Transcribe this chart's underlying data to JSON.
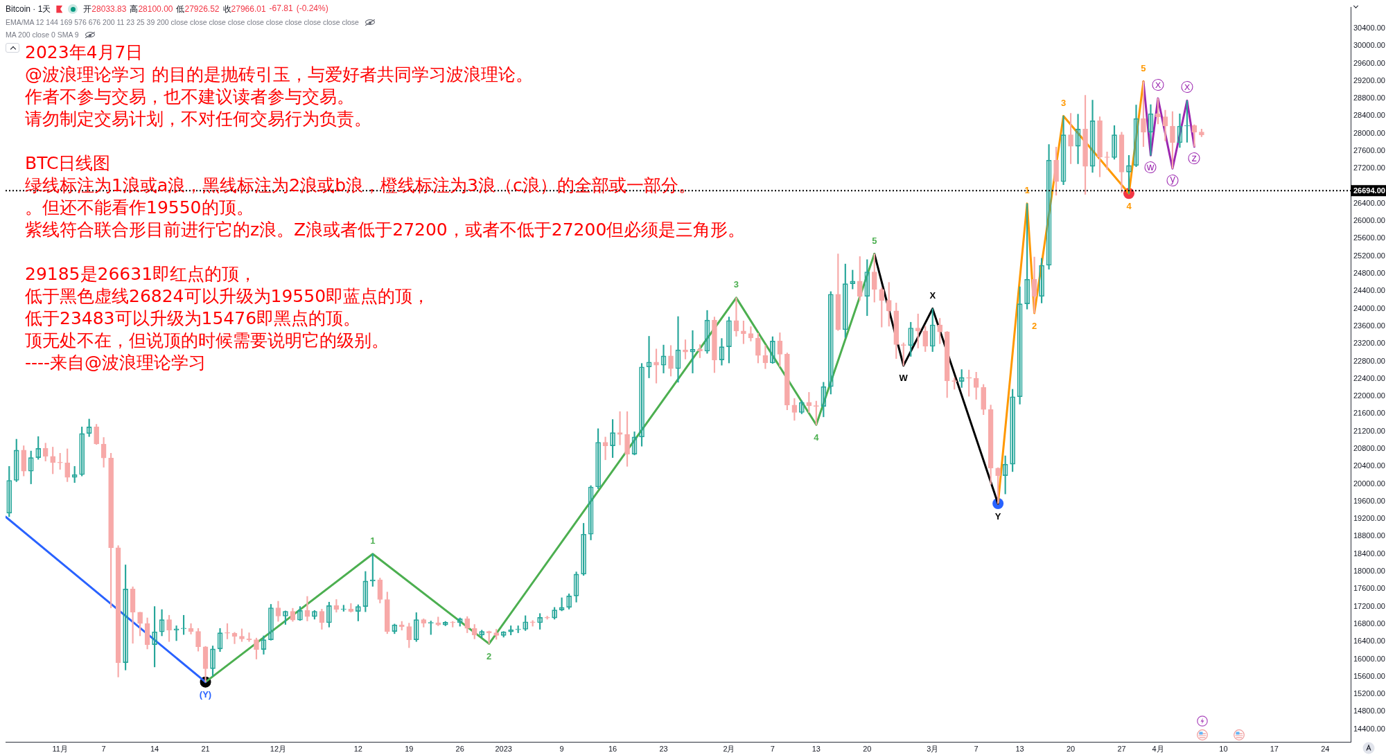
{
  "chart_data": {
    "type": "candlestick",
    "title": "Bitcoin · 1天",
    "subtitle": "开28033.83 高28100.00 低27926.52 收27966.01 -67.81 (-0.24%)",
    "x": [
      "2022-10-25",
      "2022-10-26",
      "2022-10-27",
      "2022-10-28",
      "2022-10-29",
      "2022-10-30",
      "2022-10-31",
      "2022-11-01",
      "2022-11-02",
      "2022-11-03",
      "2022-11-04",
      "2022-11-05",
      "2022-11-06",
      "2022-11-07",
      "2022-11-08",
      "2022-11-09",
      "2022-11-10",
      "2022-11-11",
      "2022-11-12",
      "2022-11-13",
      "2022-11-14",
      "2022-11-15",
      "2022-11-16",
      "2022-11-17",
      "2022-11-18",
      "2022-11-19",
      "2022-11-20",
      "2022-11-21",
      "2022-11-22",
      "2022-11-23",
      "2022-11-24",
      "2022-11-25",
      "2022-11-26",
      "2022-11-27",
      "2022-11-28",
      "2022-11-29",
      "2022-11-30",
      "2022-12-01",
      "2022-12-02",
      "2022-12-03",
      "2022-12-04",
      "2022-12-05",
      "2022-12-06",
      "2022-12-07",
      "2022-12-08",
      "2022-12-09",
      "2022-12-10",
      "2022-12-11",
      "2022-12-12",
      "2022-12-13",
      "2022-12-14",
      "2022-12-15",
      "2022-12-16",
      "2022-12-17",
      "2022-12-18",
      "2022-12-19",
      "2022-12-20",
      "2022-12-21",
      "2022-12-22",
      "2022-12-23",
      "2022-12-24",
      "2022-12-25",
      "2022-12-26",
      "2022-12-27",
      "2022-12-28",
      "2022-12-29",
      "2022-12-30",
      "2022-12-31",
      "2023-01-01",
      "2023-01-02",
      "2023-01-03",
      "2023-01-04",
      "2023-01-05",
      "2023-01-06",
      "2023-01-07",
      "2023-01-08",
      "2023-01-09",
      "2023-01-10",
      "2023-01-11",
      "2023-01-12",
      "2023-01-13",
      "2023-01-14",
      "2023-01-15",
      "2023-01-16",
      "2023-01-17",
      "2023-01-18",
      "2023-01-19",
      "2023-01-20",
      "2023-01-21",
      "2023-01-22",
      "2023-01-23",
      "2023-01-24",
      "2023-01-25",
      "2023-01-26",
      "2023-01-27",
      "2023-01-28",
      "2023-01-29",
      "2023-01-30",
      "2023-01-31",
      "2023-02-01",
      "2023-02-02",
      "2023-02-03",
      "2023-02-04",
      "2023-02-05",
      "2023-02-06",
      "2023-02-07",
      "2023-02-08",
      "2023-02-09",
      "2023-02-10",
      "2023-02-11",
      "2023-02-12",
      "2023-02-13",
      "2023-02-14",
      "2023-02-15",
      "2023-02-16",
      "2023-02-17",
      "2023-02-18",
      "2023-02-19",
      "2023-02-20",
      "2023-02-21",
      "2023-02-22",
      "2023-02-23",
      "2023-02-24",
      "2023-02-25",
      "2023-02-26",
      "2023-02-27",
      "2023-02-28",
      "2023-03-01",
      "2023-03-02",
      "2023-03-03",
      "2023-03-04",
      "2023-03-05",
      "2023-03-06",
      "2023-03-07",
      "2023-03-08",
      "2023-03-09",
      "2023-03-10",
      "2023-03-11",
      "2023-03-12",
      "2023-03-13",
      "2023-03-14",
      "2023-03-15",
      "2023-03-16",
      "2023-03-17",
      "2023-03-18",
      "2023-03-19",
      "2023-03-20",
      "2023-03-21",
      "2023-03-22",
      "2023-03-23",
      "2023-03-24",
      "2023-03-25",
      "2023-03-26",
      "2023-03-27",
      "2023-03-28",
      "2023-03-29",
      "2023-03-30",
      "2023-03-31",
      "2023-04-01",
      "2023-04-02",
      "2023-04-03",
      "2023-04-04",
      "2023-04-05",
      "2023-04-06",
      "2023-04-07"
    ],
    "ohlc": [
      [
        19330,
        20400,
        19250,
        20080
      ],
      [
        20080,
        21020,
        20050,
        20770
      ],
      [
        20770,
        20870,
        20180,
        20290
      ],
      [
        20290,
        20750,
        20000,
        20600
      ],
      [
        20600,
        21080,
        20560,
        20810
      ],
      [
        20810,
        20930,
        20520,
        20630
      ],
      [
        20630,
        20840,
        20230,
        20490
      ],
      [
        20490,
        20700,
        20330,
        20480
      ],
      [
        20480,
        20800,
        20050,
        20150
      ],
      [
        20150,
        20400,
        20030,
        20210
      ],
      [
        20210,
        21300,
        20180,
        21150
      ],
      [
        21150,
        21480,
        21080,
        21300
      ],
      [
        21300,
        21360,
        20900,
        20910
      ],
      [
        20910,
        21060,
        20380,
        20590
      ],
      [
        20590,
        20700,
        17170,
        18540
      ],
      [
        18540,
        18590,
        15590,
        15920
      ],
      [
        15920,
        18150,
        15750,
        17600
      ],
      [
        17600,
        17650,
        16360,
        17070
      ],
      [
        17070,
        17070,
        16530,
        16810
      ],
      [
        16810,
        16940,
        16230,
        16330
      ],
      [
        16330,
        17200,
        15820,
        16620
      ],
      [
        16620,
        17130,
        16530,
        16900
      ],
      [
        16900,
        17000,
        16400,
        16660
      ],
      [
        16660,
        16760,
        16420,
        16690
      ],
      [
        16690,
        17000,
        16560,
        16700
      ],
      [
        16700,
        16810,
        16570,
        16630
      ],
      [
        16630,
        16700,
        16180,
        16280
      ],
      [
        16280,
        16290,
        15476,
        15780
      ],
      [
        15780,
        16300,
        15610,
        16230
      ],
      [
        16230,
        16700,
        16170,
        16600
      ],
      [
        16600,
        16810,
        16460,
        16590
      ],
      [
        16590,
        16610,
        16350,
        16520
      ],
      [
        16520,
        16690,
        16400,
        16460
      ],
      [
        16460,
        16600,
        16400,
        16440
      ],
      [
        16440,
        16480,
        16000,
        16220
      ],
      [
        16220,
        16530,
        16110,
        16440
      ],
      [
        16440,
        17250,
        16430,
        17170
      ],
      [
        17170,
        17320,
        16860,
        16980
      ],
      [
        16980,
        17100,
        16790,
        17090
      ],
      [
        17090,
        17160,
        16860,
        16890
      ],
      [
        16890,
        17200,
        16880,
        17110
      ],
      [
        17110,
        17430,
        16870,
        16970
      ],
      [
        16970,
        17110,
        16910,
        17090
      ],
      [
        17090,
        17140,
        16680,
        16830
      ],
      [
        16830,
        17300,
        16730,
        17220
      ],
      [
        17220,
        17360,
        17070,
        17130
      ],
      [
        17130,
        17230,
        17090,
        17140
      ],
      [
        17140,
        17270,
        17070,
        17090
      ],
      [
        17090,
        17240,
        16870,
        17200
      ],
      [
        17200,
        18000,
        17080,
        17780
      ],
      [
        17780,
        18400,
        17660,
        17810
      ],
      [
        17810,
        17850,
        17280,
        17360
      ],
      [
        17360,
        17530,
        16580,
        16630
      ],
      [
        16630,
        16800,
        16580,
        16780
      ],
      [
        16780,
        16860,
        16660,
        16740
      ],
      [
        16740,
        16820,
        16260,
        16440
      ],
      [
        16440,
        17060,
        16400,
        16900
      ],
      [
        16900,
        16920,
        16730,
        16820
      ],
      [
        16820,
        16870,
        16560,
        16830
      ],
      [
        16830,
        16960,
        16760,
        16780
      ],
      [
        16780,
        16860,
        16760,
        16840
      ],
      [
        16840,
        16860,
        16730,
        16830
      ],
      [
        16830,
        16940,
        16750,
        16920
      ],
      [
        16920,
        16970,
        16600,
        16700
      ],
      [
        16700,
        16790,
        16460,
        16550
      ],
      [
        16550,
        16660,
        16490,
        16630
      ],
      [
        16630,
        16640,
        16350,
        16600
      ],
      [
        16600,
        16680,
        16450,
        16540
      ],
      [
        16540,
        16630,
        16500,
        16620
      ],
      [
        16620,
        16760,
        16550,
        16670
      ],
      [
        16670,
        16760,
        16600,
        16680
      ],
      [
        16680,
        16990,
        16650,
        16850
      ],
      [
        16850,
        16880,
        16750,
        16830
      ],
      [
        16830,
        17040,
        16680,
        16950
      ],
      [
        16950,
        16980,
        16910,
        16940
      ],
      [
        16940,
        17180,
        16910,
        17120
      ],
      [
        17120,
        17400,
        17100,
        17180
      ],
      [
        17180,
        17490,
        17140,
        17440
      ],
      [
        17440,
        17990,
        17300,
        17940
      ],
      [
        17940,
        19100,
        17910,
        18850
      ],
      [
        18850,
        19960,
        18720,
        19930
      ],
      [
        19930,
        21260,
        19890,
        20950
      ],
      [
        20950,
        21070,
        20550,
        20870
      ],
      [
        20870,
        21470,
        20600,
        21170
      ],
      [
        21170,
        21650,
        20890,
        21130
      ],
      [
        21130,
        21650,
        20400,
        20680
      ],
      [
        20680,
        21190,
        20660,
        21070
      ],
      [
        21070,
        22750,
        20860,
        22670
      ],
      [
        22670,
        23370,
        22420,
        22780
      ],
      [
        22780,
        23080,
        22300,
        22710
      ],
      [
        22710,
        23170,
        22530,
        22920
      ],
      [
        22920,
        23160,
        22460,
        22630
      ],
      [
        22630,
        23820,
        22320,
        23060
      ],
      [
        23060,
        23290,
        22850,
        23010
      ],
      [
        23010,
        23500,
        22530,
        23070
      ],
      [
        23070,
        23180,
        22880,
        23030
      ],
      [
        23030,
        23960,
        22980,
        23740
      ],
      [
        23740,
        23810,
        22540,
        22830
      ],
      [
        22830,
        23320,
        22710,
        23130
      ],
      [
        23130,
        23810,
        22760,
        23730
      ],
      [
        23730,
        24250,
        23370,
        23490
      ],
      [
        23490,
        23720,
        23200,
        23430
      ],
      [
        23430,
        23590,
        23260,
        23330
      ],
      [
        23330,
        23440,
        22760,
        22930
      ],
      [
        22930,
        23160,
        22630,
        22760
      ],
      [
        22760,
        23360,
        22750,
        23260
      ],
      [
        23260,
        23450,
        22680,
        22960
      ],
      [
        22960,
        22990,
        21690,
        21800
      ],
      [
        21800,
        21950,
        21450,
        21630
      ],
      [
        21630,
        21900,
        21600,
        21860
      ],
      [
        21860,
        22090,
        21630,
        21780
      ],
      [
        21780,
        21890,
        21350,
        21770
      ],
      [
        21770,
        22320,
        21530,
        22220
      ],
      [
        22220,
        24390,
        22050,
        24330
      ],
      [
        24330,
        25250,
        23500,
        23520
      ],
      [
        23520,
        25020,
        23340,
        24570
      ],
      [
        24570,
        24880,
        24450,
        24630
      ],
      [
        24630,
        25190,
        24190,
        24280
      ],
      [
        24280,
        25120,
        23840,
        24840
      ],
      [
        24840,
        25250,
        24150,
        24440
      ],
      [
        24440,
        24480,
        23580,
        24190
      ],
      [
        24190,
        24600,
        23600,
        23950
      ],
      [
        23950,
        24130,
        22860,
        23180
      ],
      [
        23180,
        23220,
        22700,
        23160
      ],
      [
        23160,
        23690,
        22910,
        23560
      ],
      [
        23560,
        23880,
        23100,
        23490
      ],
      [
        23490,
        23600,
        23020,
        23140
      ],
      [
        23140,
        24000,
        23020,
        23630
      ],
      [
        23630,
        23780,
        23200,
        23470
      ],
      [
        23470,
        23480,
        21970,
        22350
      ],
      [
        22350,
        22420,
        22160,
        22340
      ],
      [
        22340,
        22610,
        22200,
        22430
      ],
      [
        22430,
        22600,
        22000,
        22410
      ],
      [
        22410,
        22550,
        21930,
        22200
      ],
      [
        22200,
        22270,
        21580,
        21700
      ],
      [
        21700,
        21800,
        19990,
        20360
      ],
      [
        20360,
        20370,
        19550,
        20190
      ],
      [
        20190,
        20640,
        19770,
        20450
      ],
      [
        20450,
        22160,
        20280,
        21990
      ],
      [
        21990,
        24500,
        21820,
        24110
      ],
      [
        24110,
        26400,
        23990,
        24670
      ],
      [
        24670,
        25180,
        23900,
        24280
      ],
      [
        24280,
        25150,
        24130,
        24990
      ],
      [
        24990,
        27750,
        24900,
        27390
      ],
      [
        27390,
        27690,
        26590,
        26900
      ],
      [
        26900,
        28400,
        26830,
        27970
      ],
      [
        27970,
        28460,
        27310,
        27710
      ],
      [
        27710,
        28440,
        27310,
        28100
      ],
      [
        28100,
        28870,
        26610,
        27250
      ],
      [
        27250,
        28760,
        27110,
        28290
      ],
      [
        28290,
        28380,
        27010,
        27460
      ],
      [
        27460,
        27580,
        27180,
        27450
      ],
      [
        27450,
        28180,
        27410,
        27970
      ],
      [
        27970,
        28030,
        26650,
        27120
      ],
      [
        27120,
        27500,
        26631,
        27270
      ],
      [
        27270,
        28650,
        27240,
        28340
      ],
      [
        28340,
        29185,
        27700,
        28030
      ],
      [
        28030,
        28660,
        27500,
        28450
      ],
      [
        28450,
        28800,
        28220,
        28380
      ],
      [
        28380,
        28530,
        27830,
        28170
      ],
      [
        28170,
        28500,
        27200,
        27790
      ],
      [
        27790,
        28450,
        27680,
        28170
      ],
      [
        28170,
        28750,
        27800,
        28180
      ],
      [
        28180,
        28200,
        27700,
        28030
      ],
      [
        28033.83,
        28100.0,
        27926.52,
        27966.01
      ]
    ],
    "colors": [
      "#26a69a",
      "#26a69a",
      "#f7a9a8",
      "#26a69a",
      "#26a69a",
      "#f7a9a8",
      "#f7a9a8",
      "#f7a9a8",
      "#f7a9a8",
      "#26a69a",
      "#26a69a",
      "#26a69a",
      "#f7a9a8",
      "#f7a9a8",
      "#f7a9a8",
      "#f7a9a8",
      "#26a69a",
      "#f7a9a8",
      "#f7a9a8",
      "#f7a9a8",
      "#26a69a",
      "#26a69a",
      "#f7a9a8",
      "#26a69a",
      "#26a69a",
      "#f7a9a8",
      "#f7a9a8",
      "#f7a9a8",
      "#26a69a",
      "#26a69a",
      "#f7a9a8",
      "#f7a9a8",
      "#f7a9a8",
      "#f7a9a8",
      "#f7a9a8",
      "#26a69a",
      "#26a69a",
      "#f7a9a8",
      "#26a69a",
      "#f7a9a8",
      "#26a69a",
      "#f7a9a8",
      "#26a69a",
      "#f7a9a8",
      "#26a69a",
      "#f7a9a8",
      "#26a69a",
      "#f7a9a8",
      "#26a69a",
      "#26a69a",
      "#26a69a",
      "#f7a9a8",
      "#f7a9a8",
      "#26a69a",
      "#f7a9a8",
      "#f7a9a8",
      "#26a69a",
      "#f7a9a8",
      "#26a69a",
      "#f7a9a8",
      "#26a69a",
      "#f7a9a8",
      "#26a69a",
      "#f7a9a8",
      "#f7a9a8",
      "#26a69a",
      "#f7a9a8",
      "#f7a9a8",
      "#26a69a",
      "#26a69a",
      "#26a69a",
      "#26a69a",
      "#f7a9a8",
      "#26a69a",
      "#f7a9a8",
      "#26a69a",
      "#26a69a",
      "#26a69a",
      "#26a69a",
      "#26a69a",
      "#26a69a",
      "#26a69a",
      "#f7a9a8",
      "#26a69a",
      "#f7a9a8",
      "#f7a9a8",
      "#26a69a",
      "#26a69a",
      "#26a69a",
      "#f7a9a8",
      "#26a69a",
      "#f7a9a8",
      "#26a69a",
      "#f7a9a8",
      "#26a69a",
      "#f7a9a8",
      "#26a69a",
      "#f7a9a8",
      "#26a69a",
      "#26a69a",
      "#f7a9a8",
      "#f7a9a8",
      "#f7a9a8",
      "#f7a9a8",
      "#f7a9a8",
      "#26a69a",
      "#f7a9a8",
      "#f7a9a8",
      "#f7a9a8",
      "#26a69a",
      "#f7a9a8",
      "#f7a9a8",
      "#26a69a",
      "#26a69a",
      "#f7a9a8",
      "#26a69a",
      "#26a69a",
      "#f7a9a8",
      "#26a69a",
      "#f7a9a8",
      "#f7a9a8",
      "#f7a9a8",
      "#f7a9a8",
      "#f7a9a8",
      "#26a69a",
      "#f7a9a8",
      "#f7a9a8",
      "#26a69a",
      "#f7a9a8",
      "#f7a9a8",
      "#f7a9a8",
      "#26a69a",
      "#f7a9a8",
      "#f7a9a8",
      "#f7a9a8",
      "#f7a9a8",
      "#f7a9a8",
      "#26a69a",
      "#26a69a",
      "#26a69a",
      "#26a69a",
      "#f7a9a8",
      "#26a69a",
      "#26a69a",
      "#f7a9a8",
      "#26a69a",
      "#f7a9a8",
      "#26a69a",
      "#f7a9a8",
      "#26a69a",
      "#f7a9a8",
      "#f7a9a8",
      "#26a69a",
      "#f7a9a8",
      "#26a69a",
      "#26a69a",
      "#f7a9a8",
      "#26a69a",
      "#f7a9a8",
      "#f7a9a8",
      "#f7a9a8",
      "#26a69a",
      "#26a69a",
      "#f7a9a8",
      "#f7a9a8"
    ],
    "series": [
      {
        "type": "line",
        "color": "#2962ff",
        "x": [
          "2022-10-24T12:00",
          "2022-11-21"
        ],
        "values": [
          19250,
          15476
        ]
      },
      {
        "type": "line",
        "color": "#4caf50",
        "x": [
          "2022-11-21",
          "2022-12-14",
          "2022-12-30",
          "2023-02-02",
          "2023-02-13",
          "2023-02-21"
        ],
        "values": [
          15476,
          18400,
          16350,
          24250,
          21350,
          25250
        ]
      },
      {
        "type": "line",
        "color": "#000000",
        "x": [
          "2023-02-21",
          "2023-02-25",
          "2023-03-01",
          "2023-03-10"
        ],
        "values": [
          25250,
          22700,
          24000,
          19550
        ]
      },
      {
        "type": "line",
        "color": "#ff9800",
        "x": [
          "2023-03-10",
          "2023-03-14",
          "2023-03-15",
          "2023-03-19",
          "2023-03-28",
          "2023-03-30"
        ],
        "values": [
          19550,
          26400,
          23900,
          28400,
          26631,
          29185
        ]
      },
      {
        "type": "line",
        "color": "#9c27b0",
        "x": [
          "2023-03-30",
          "2023-03-31",
          "2023-04-01",
          "2023-04-03",
          "2023-04-05",
          "2023-04-06"
        ],
        "values": [
          29185,
          27500,
          28800,
          27200,
          28750,
          27700
        ]
      },
      {
        "type": "scatter",
        "marker": "circle",
        "x": [
          "2022-11-21",
          "2023-03-10",
          "2023-03-28"
        ],
        "values": [
          15476,
          19550,
          26631
        ],
        "colors": [
          "#000000",
          "#2962ff",
          "#f23645"
        ]
      }
    ],
    "ref_lines": [
      {
        "axis": "y",
        "value": 26694,
        "label": "26694.00",
        "color": "#000000",
        "line_style": "dotted"
      }
    ],
    "annotations": [
      "EMA/MA 12 144 169 576 676 200 11 23 25 39 200 close close close close close close close close close close",
      "MA 200 close 0 SMA 9",
      "2023年4月7日",
      "@波浪理论学习 的目的是抛砖引玉，与爱好者共同学习波浪理论。",
      "作者不参与交易，也不建议读者参与交易。",
      "请勿制定交易计划，不对任何交易行为负责。",
      "BTC日线图",
      "绿线标注为1浪或a浪，黑线标注为2浪或b浪，橙线标注为3浪（c浪）的全部或一部分。",
      "。但还不能看作19550的顶。",
      "紫线符合联合形目前进行它的z浪。Z浪或者低于27200，或者不低于27200但必须是三角形。",
      "29185是26631即红点的顶，",
      "低于黑色虚线26824可以升级为19550即蓝点的顶，",
      "低于23483可以升级为15476即黑点的顶。",
      "顶无处不在，但说顶的时候需要说明它的级别。",
      "----来自@波浪理论学习",
      {
        "text": "(Y)",
        "x": "2022-11-21",
        "y": 15476
      },
      {
        "text": "1",
        "x": "2022-12-14",
        "y": 18400
      },
      {
        "text": "2",
        "x": "2022-12-30",
        "y": 16350
      },
      {
        "text": "3",
        "x": "2023-02-02",
        "y": 24250
      },
      {
        "text": "4",
        "x": "2023-02-13",
        "y": 21350
      },
      {
        "text": "5",
        "x": "2023-02-21",
        "y": 25250
      },
      {
        "text": "W",
        "x": "2023-02-25",
        "y": 22700
      },
      {
        "text": "X",
        "x": "2023-03-01",
        "y": 24000
      },
      {
        "text": "Y",
        "x": "2023-03-10",
        "y": 19550
      },
      {
        "text": "1",
        "x": "2023-03-14",
        "y": 26400
      },
      {
        "text": "2",
        "x": "2023-03-15",
        "y": 23900
      },
      {
        "text": "3",
        "x": "2023-03-19",
        "y": 28400
      },
      {
        "text": "4",
        "x": "2023-03-28",
        "y": 26631
      },
      {
        "text": "5",
        "x": "2023-03-30",
        "y": 29185
      },
      {
        "text": "ⓦ",
        "x": "2023-03-31",
        "y": 27500
      },
      {
        "text": "ⓧ",
        "x": "2023-04-01",
        "y": 28800
      },
      {
        "text": "ⓨ",
        "x": "2023-04-03",
        "y": 27200
      },
      {
        "text": "ⓧ",
        "x": "2023-04-05",
        "y": 28750
      },
      {
        "text": "ⓩ",
        "x": "2023-04-06",
        "y": 27700
      }
    ],
    "xlim": [
      "2022-10-24T12:00",
      "2023-04-27T12:00"
    ],
    "xticks": [
      {
        "value": "2022-11-01",
        "label": "11月"
      },
      {
        "value": "2022-11-07",
        "label": "7"
      },
      {
        "value": "2022-11-14",
        "label": "14"
      },
      {
        "value": "2022-11-21",
        "label": "21"
      },
      {
        "value": "2022-12-01",
        "label": "12月"
      },
      {
        "value": "2022-12-12",
        "label": "12"
      },
      {
        "value": "2022-12-19",
        "label": "19"
      },
      {
        "value": "2022-12-26",
        "label": "26"
      },
      {
        "value": "2023-01-01",
        "label": "2023"
      },
      {
        "value": "2023-01-09",
        "label": "9"
      },
      {
        "value": "2023-01-16",
        "label": "16"
      },
      {
        "value": "2023-01-23",
        "label": "23"
      },
      {
        "value": "2023-02-01",
        "label": "2月"
      },
      {
        "value": "2023-02-07",
        "label": "7"
      },
      {
        "value": "2023-02-13",
        "label": "13"
      },
      {
        "value": "2023-02-20",
        "label": "20"
      },
      {
        "value": "2023-03-01",
        "label": "3月"
      },
      {
        "value": "2023-03-07",
        "label": "7"
      },
      {
        "value": "2023-03-13",
        "label": "13"
      },
      {
        "value": "2023-03-20",
        "label": "20"
      },
      {
        "value": "2023-03-27",
        "label": "27"
      },
      {
        "value": "2023-04-01",
        "label": "4月"
      },
      {
        "value": "2023-04-10",
        "label": "10"
      },
      {
        "value": "2023-04-17",
        "label": "17"
      },
      {
        "value": "2023-04-24",
        "label": "24"
      }
    ],
    "ylim": [
      14110,
      30880
    ],
    "yticks": [
      {
        "value": 14400,
        "label": "14400.00"
      },
      {
        "value": 14800,
        "label": "14800.00"
      },
      {
        "value": 15200,
        "label": "15200.00"
      },
      {
        "value": 15600,
        "label": "15600.00"
      },
      {
        "value": 16000,
        "label": "16000.00"
      },
      {
        "value": 16400,
        "label": "16400.00"
      },
      {
        "value": 16800,
        "label": "16800.00"
      },
      {
        "value": 17200,
        "label": "17200.00"
      },
      {
        "value": 17600,
        "label": "17600.00"
      },
      {
        "value": 18000,
        "label": "18000.00"
      },
      {
        "value": 18400,
        "label": "18400.00"
      },
      {
        "value": 18800,
        "label": "18800.00"
      },
      {
        "value": 19200,
        "label": "19200.00"
      },
      {
        "value": 19600,
        "label": "19600.00"
      },
      {
        "value": 20000,
        "label": "20000.00"
      },
      {
        "value": 20400,
        "label": "20400.00"
      },
      {
        "value": 20800,
        "label": "20800.00"
      },
      {
        "value": 21200,
        "label": "21200.00"
      },
      {
        "value": 21600,
        "label": "21600.00"
      },
      {
        "value": 22000,
        "label": "22000.00"
      },
      {
        "value": 22400,
        "label": "22400.00"
      },
      {
        "value": 22800,
        "label": "22800.00"
      },
      {
        "value": 23200,
        "label": "23200.00"
      },
      {
        "value": 23600,
        "label": "23600.00"
      },
      {
        "value": 24000,
        "label": "24000.00"
      },
      {
        "value": 24400,
        "label": "24400.00"
      },
      {
        "value": 24800,
        "label": "24800.00"
      },
      {
        "value": 25200,
        "label": "25200.00"
      },
      {
        "value": 25600,
        "label": "25600.00"
      },
      {
        "value": 26000,
        "label": "26000.00"
      },
      {
        "value": 26400,
        "label": "26400.00"
      },
      {
        "value": 27200,
        "label": "27200.00"
      },
      {
        "value": 27600,
        "label": "27600.00"
      },
      {
        "value": 28000,
        "label": "28000.00"
      },
      {
        "value": 28400,
        "label": "28400.00"
      },
      {
        "value": 28800,
        "label": "28800.00"
      },
      {
        "value": 29200,
        "label": "29200.00"
      },
      {
        "value": 29600,
        "label": "29600.00"
      },
      {
        "value": 30000,
        "label": "30000.00"
      },
      {
        "value": 30400,
        "label": "30400.00"
      }
    ]
  }
}
